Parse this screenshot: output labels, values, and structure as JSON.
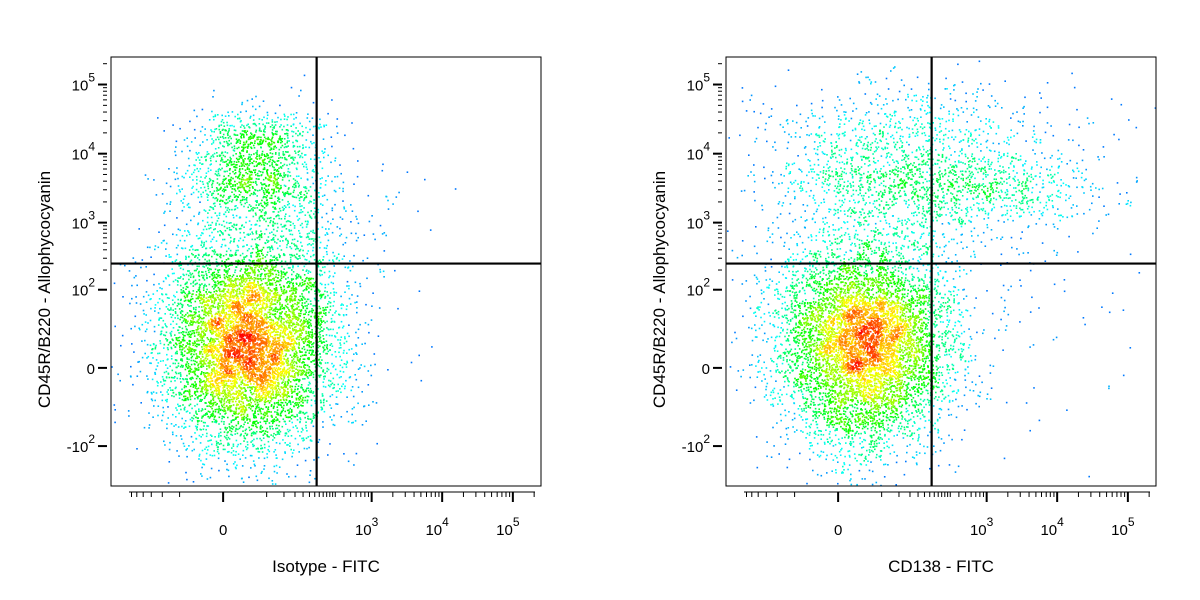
{
  "charts": [
    {
      "chart_data": {
        "type": "scatter",
        "title": "",
        "xlabel": "Isotype - FITC",
        "ylabel": "CD45R/B220 - Allophycocyanin",
        "x_scale": "biexponential",
        "y_scale": "biexponential",
        "xlim": [
          -300,
          250000
        ],
        "ylim": [
          -400,
          250000
        ],
        "x_ticks": [
          {
            "value": 0,
            "base": "0",
            "exp": ""
          },
          {
            "value": 1000,
            "base": "10",
            "exp": "3"
          },
          {
            "value": 10000,
            "base": "10",
            "exp": "4"
          },
          {
            "value": 100000,
            "base": "10",
            "exp": "5"
          }
        ],
        "y_ticks": [
          {
            "value": 100000,
            "base": "10",
            "exp": "5"
          },
          {
            "value": 10000,
            "base": "10",
            "exp": "4"
          },
          {
            "value": 1000,
            "base": "10",
            "exp": "3"
          },
          {
            "value": 100,
            "base": "10",
            "exp": "2"
          },
          {
            "value": 0,
            "base": "0",
            "exp": ""
          },
          {
            "value": -100,
            "base": "-10",
            "exp": "2"
          }
        ],
        "quadrant_gate": {
          "x": 160,
          "y": 250
        },
        "colormap": [
          "#0000ff",
          "#00ffff",
          "#00ff00",
          "#ffff00",
          "#ff0000"
        ],
        "populations": [
          {
            "cx": 10,
            "cy": 10,
            "sx": 45,
            "sy": 55,
            "weight": 0.8
          },
          {
            "cx": 15,
            "cy": 15000,
            "sx": 0.22,
            "sy": 0.12,
            "weight": 0.07
          },
          {
            "cx": 15,
            "cy": 3500,
            "sx": 0.22,
            "sy": 0.12,
            "weight": 0.07
          },
          {
            "cx": 25,
            "cy": 800,
            "sx": 0.4,
            "sy": 0.25,
            "weight": 0.05
          },
          {
            "cx": 300,
            "cy": 60,
            "sx": 0.35,
            "sy": 0.6,
            "weight": 0.01
          }
        ]
      }
    },
    {
      "chart_data": {
        "type": "scatter",
        "title": "",
        "xlabel": "CD138 - FITC",
        "ylabel": "CD45R/B220 - Allophycocyanin",
        "x_scale": "biexponential",
        "y_scale": "biexponential",
        "xlim": [
          -300,
          250000
        ],
        "ylim": [
          -400,
          250000
        ],
        "x_ticks": [
          {
            "value": 0,
            "base": "0",
            "exp": ""
          },
          {
            "value": 1000,
            "base": "10",
            "exp": "3"
          },
          {
            "value": 10000,
            "base": "10",
            "exp": "4"
          },
          {
            "value": 100000,
            "base": "10",
            "exp": "5"
          }
        ],
        "y_ticks": [
          {
            "value": 100000,
            "base": "10",
            "exp": "5"
          },
          {
            "value": 10000,
            "base": "10",
            "exp": "4"
          },
          {
            "value": 1000,
            "base": "10",
            "exp": "3"
          },
          {
            "value": 100,
            "base": "10",
            "exp": "2"
          },
          {
            "value": 0,
            "base": "0",
            "exp": ""
          },
          {
            "value": -100,
            "base": "-10",
            "exp": "2"
          }
        ],
        "quadrant_gate": {
          "x": 160,
          "y": 250
        },
        "colormap": [
          "#0000ff",
          "#00ffff",
          "#00ff00",
          "#ffff00",
          "#ff0000"
        ],
        "populations": [
          {
            "cx": 10,
            "cy": 10,
            "sx": 45,
            "sy": 55,
            "weight": 0.74
          },
          {
            "cx": 40,
            "cy": 15000,
            "sx": 0.45,
            "sy": 0.18,
            "weight": 0.07
          },
          {
            "cx": 60,
            "cy": 3500,
            "sx": 0.45,
            "sy": 0.15,
            "weight": 0.06
          },
          {
            "cx": 900,
            "cy": 3000,
            "sx": 0.4,
            "sy": 0.12,
            "weight": 0.05
          },
          {
            "cx": 25,
            "cy": 800,
            "sx": 0.4,
            "sy": 0.25,
            "weight": 0.04
          },
          {
            "cx": 1200,
            "cy": 300,
            "sx": 0.6,
            "sy": 0.6,
            "weight": 0.02
          },
          {
            "cx": 500,
            "cy": 20000,
            "sx": 0.5,
            "sy": 0.25,
            "weight": 0.02
          }
        ]
      }
    }
  ]
}
